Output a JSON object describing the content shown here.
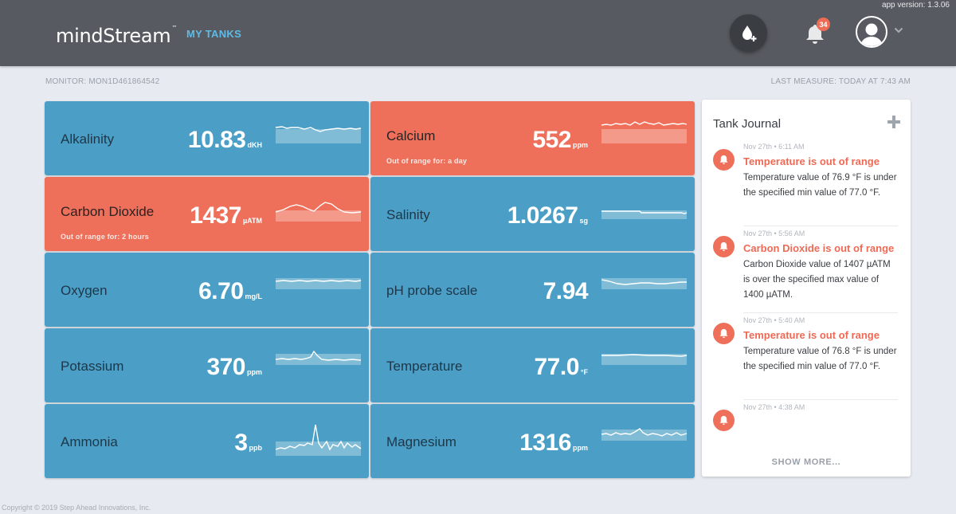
{
  "header": {
    "app_version": "app version: 1.3.06",
    "logo_text": "mindStream",
    "logo_tm": "™",
    "nav_label": "MY TANKS",
    "notification_count": "34",
    "add_water_icon": "water-drop-plus-icon",
    "bell_icon": "bell-icon",
    "avatar_icon": "user-avatar-icon",
    "chevron_icon": "chevron-down-icon"
  },
  "subheader": {
    "monitor": "MONITOR: MON1D461864542",
    "last_measure": "LAST MEASURE: TODAY AT 7:43 AM"
  },
  "tiles": [
    {
      "label": "Alkalinity",
      "value": "10.83",
      "unit": "dKH",
      "status": "normal",
      "sub": ""
    },
    {
      "label": "Calcium",
      "value": "552",
      "unit": "ppm",
      "status": "alert",
      "sub": "Out of range for: a day"
    },
    {
      "label": "Carbon Dioxide",
      "value": "1437",
      "unit": "µATM",
      "status": "alert",
      "sub": "Out of range for: 2 hours"
    },
    {
      "label": "Salinity",
      "value": "1.0267",
      "unit": "sg",
      "status": "normal",
      "sub": ""
    },
    {
      "label": "Oxygen",
      "value": "6.70",
      "unit": "mg/L",
      "status": "normal",
      "sub": ""
    },
    {
      "label": "pH probe scale",
      "value": "7.94",
      "unit": "",
      "status": "normal",
      "sub": ""
    },
    {
      "label": "Potassium",
      "value": "370",
      "unit": "ppm",
      "status": "normal",
      "sub": ""
    },
    {
      "label": "Temperature",
      "value": "77.0",
      "unit": "°F",
      "status": "normal",
      "sub": ""
    },
    {
      "label": "Ammonia",
      "value": "3",
      "unit": "ppb",
      "status": "normal",
      "sub": ""
    },
    {
      "label": "Magnesium",
      "value": "1316",
      "unit": "ppm",
      "status": "normal",
      "sub": ""
    }
  ],
  "journal": {
    "title": "Tank Journal",
    "add_icon": "plus-icon",
    "show_more": "SHOW MORE...",
    "entries": [
      {
        "date": "Nov 27th • 6:11 AM",
        "title": "Temperature is out of range",
        "body": "Temperature value of 76.9 °F is under the specified min value of 77.0 °F.",
        "icon": "alarm-bell-icon"
      },
      {
        "date": "Nov 27th • 5:56 AM",
        "title": "Carbon Dioxide is out of range",
        "body": "Carbon Dioxide value of 1407 µATM is over the specified max value of 1400 µATM.",
        "icon": "alarm-bell-icon"
      },
      {
        "date": "Nov 27th • 5:40 AM",
        "title": "Temperature is out of range",
        "body": "Temperature value of 76.8 °F is under the specified min value of 77.0 °F.",
        "icon": "alarm-bell-icon"
      },
      {
        "date": "Nov 27th • 4:38 AM",
        "title": "",
        "body": "",
        "icon": "alarm-bell-icon"
      }
    ]
  },
  "footer": {
    "copyright": "Copyright © 2019 Step Ahead Innovations, Inc."
  },
  "colors": {
    "tile_normal": "#4b9fc6",
    "tile_alert": "#ee6f5a",
    "header_bg": "#575a60",
    "accent": "#5fbbe6"
  }
}
